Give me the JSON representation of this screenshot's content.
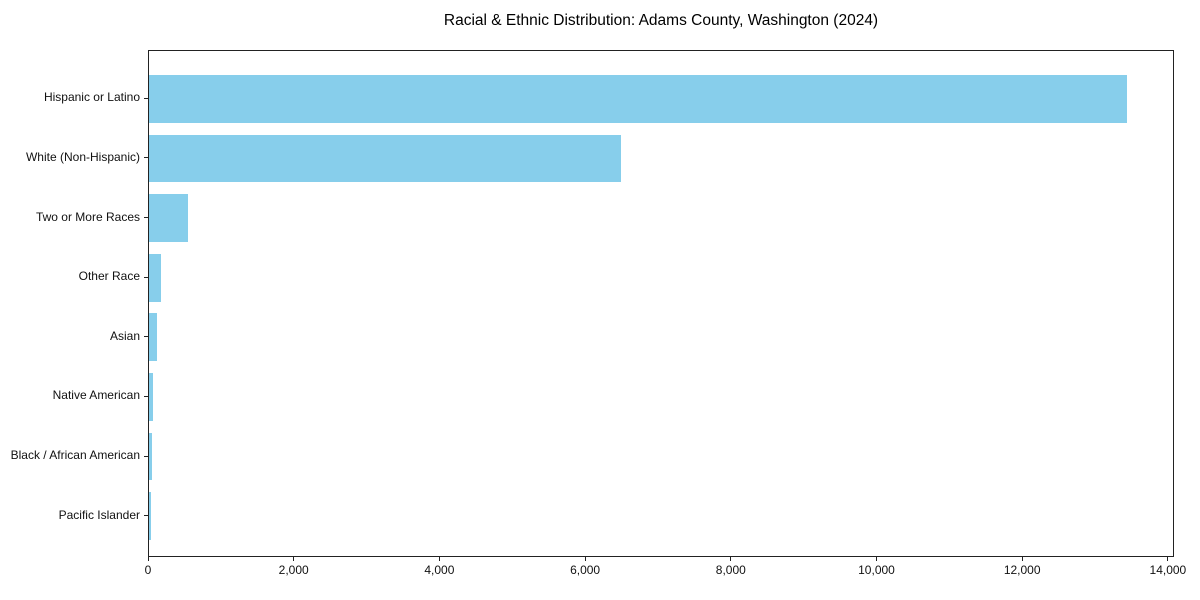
{
  "chart_data": {
    "type": "bar",
    "orientation": "horizontal",
    "title": "Racial & Ethnic Distribution: Adams County, Washington (2024)",
    "categories": [
      "Hispanic or Latino",
      "White (Non-Hispanic)",
      "Two or More Races",
      "Other Race",
      "Asian",
      "Native American",
      "Black / African American",
      "Pacific Islander"
    ],
    "values": [
      13420,
      6480,
      535,
      160,
      110,
      60,
      35,
      28
    ],
    "xlabel": "",
    "ylabel": "",
    "xlim": [
      0,
      14000
    ],
    "x_ticks": [
      0,
      2000,
      4000,
      6000,
      8000,
      10000,
      12000,
      14000
    ],
    "x_tick_labels": [
      "0",
      "2,000",
      "4,000",
      "6,000",
      "8,000",
      "10,000",
      "12,000",
      "14,000"
    ],
    "bar_color": "#87CEEB",
    "grid": false,
    "legend_position": "none"
  }
}
